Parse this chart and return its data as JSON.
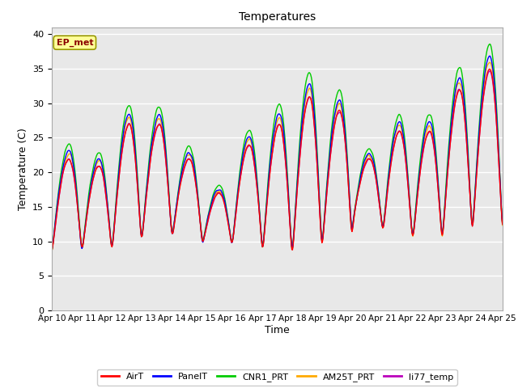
{
  "title": "Temperatures",
  "xlabel": "Time",
  "ylabel": "Temperature (C)",
  "ylim": [
    0,
    41
  ],
  "yticks": [
    0,
    5,
    10,
    15,
    20,
    25,
    30,
    35,
    40
  ],
  "fig_bg": "#ffffff",
  "plot_bg": "#e8e8e8",
  "series": {
    "AirT": {
      "color": "#ff0000",
      "lw": 1.0
    },
    "PanelT": {
      "color": "#0000ff",
      "lw": 1.0
    },
    "CNR1_PRT": {
      "color": "#00cc00",
      "lw": 1.0
    },
    "AM25T_PRT": {
      "color": "#ffaa00",
      "lw": 1.0
    },
    "li77_temp": {
      "color": "#bb00bb",
      "lw": 1.0
    }
  },
  "annotation": {
    "text": "EP_met",
    "fontsize": 8,
    "color": "#8b0000",
    "bg": "#ffff99",
    "border": "#999900"
  },
  "n_points": 720,
  "start_day": 10,
  "end_day": 25,
  "x_tick_days": [
    10,
    11,
    12,
    13,
    14,
    15,
    16,
    17,
    18,
    19,
    20,
    21,
    22,
    23,
    24,
    25
  ],
  "day_peaks": [
    22,
    21,
    27,
    27,
    22,
    17,
    24,
    27,
    31,
    29,
    22,
    26,
    26,
    32,
    35
  ],
  "day_mins": [
    8,
    8,
    8,
    10,
    10,
    9,
    9,
    7,
    7,
    9,
    12,
    10,
    9,
    10,
    11
  ]
}
